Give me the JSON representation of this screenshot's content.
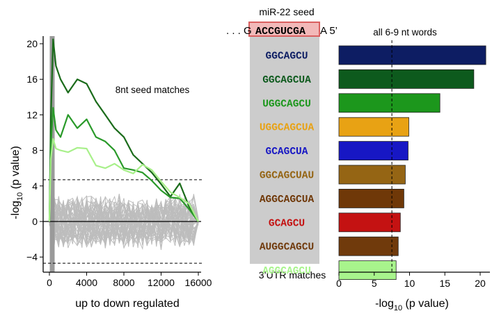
{
  "chart_data": [
    {
      "type": "line",
      "xlabel": "up to down regulated",
      "ylabel_main": "-log",
      "ylabel_sub": "10",
      "ylabel_rest": " (p value)",
      "annotation": "8nt seed matches",
      "xlim": [
        0,
        16000
      ],
      "ylim": [
        -5.5,
        21
      ],
      "xticks": [
        0,
        4000,
        8000,
        12000,
        16000
      ],
      "yticks": [
        20,
        16,
        12,
        8,
        4,
        0,
        -4
      ],
      "ytick_labels": [
        "20",
        "16",
        "12",
        "8",
        "4",
        "0",
        "−4"
      ],
      "threshold_lines": [
        4.7,
        -4.7
      ],
      "highlight_bar_x": 300,
      "colors": {
        "dark_green": "#1a6b1a",
        "mid_green": "#2a9a2a",
        "light_green": "#a8f08a",
        "background_lines": "#bdbdbd"
      },
      "series": [
        {
          "color": "#1a6b1a",
          "x": [
            0,
            150,
            400,
            700,
            1200,
            2000,
            3000,
            4000,
            5000,
            6000,
            7000,
            8000,
            9000,
            10000,
            11000,
            12000,
            13000,
            14000,
            15000,
            16000
          ],
          "y": [
            0,
            11.5,
            20.5,
            17.5,
            16,
            14.5,
            16,
            15.5,
            13.5,
            12,
            10.5,
            9.5,
            7.5,
            6.5,
            5.5,
            4.2,
            2.8,
            4.3,
            1.7,
            0
          ]
        },
        {
          "color": "#2a9a2a",
          "x": [
            0,
            150,
            400,
            700,
            1200,
            2000,
            3000,
            4000,
            5000,
            6000,
            7000,
            8000,
            9000,
            10000,
            11000,
            12000,
            13000,
            14000,
            15000,
            16000
          ],
          "y": [
            0,
            8.5,
            12.8,
            10.3,
            9.5,
            12,
            10.5,
            11.5,
            9.5,
            9,
            8,
            6,
            5.8,
            5.5,
            4.6,
            3.5,
            2.7,
            2.6,
            1.4,
            0
          ]
        },
        {
          "color": "#a8f08a",
          "x": [
            0,
            150,
            400,
            700,
            1200,
            2000,
            3000,
            4000,
            5000,
            6000,
            7000,
            8000,
            9000,
            10000,
            11000,
            12000,
            13000,
            14000,
            15000,
            16000
          ],
          "y": [
            0,
            7,
            9.3,
            8.2,
            8,
            7.8,
            8.3,
            8.2,
            6.3,
            6,
            6.5,
            5.8,
            5.4,
            6.4,
            5.8,
            4.5,
            3.3,
            2.7,
            2,
            0
          ]
        }
      ],
      "background_series": {
        "count": 45,
        "x": [
          0,
          500,
          1000,
          1500,
          2000,
          2500,
          3000,
          3500,
          4000,
          4500,
          5000,
          5500,
          6000,
          6500,
          7000,
          7500,
          8000,
          8500,
          9000,
          9500,
          10000,
          10500,
          11000,
          11500,
          12000,
          12500,
          13000,
          13500,
          14000,
          14500,
          15000,
          15500,
          16000
        ],
        "y_range": [
          -3,
          3.5
        ]
      }
    },
    {
      "type": "bar",
      "orientation": "horizontal",
      "title": "all 6-9 nt words",
      "xlabel_main": "-log",
      "xlabel_sub": "10",
      "xlabel_rest": " (p value)",
      "xlim": [
        0,
        21
      ],
      "xticks": [
        0,
        5,
        10,
        15,
        20
      ],
      "threshold": 7.5,
      "categories": [
        "GGCAGCU",
        "GGCAGCUA",
        "UGGCAGCU",
        "UGGCAGCUA",
        "GCAGCUA",
        "GGCAGCUAU",
        "AGGCAGCUA",
        "GCAGCU",
        "AUGGCAGCU",
        "AGGCAGCU"
      ],
      "values": [
        20.8,
        19.1,
        14.3,
        9.9,
        9.8,
        9.4,
        9.2,
        8.7,
        8.4,
        8.1
      ],
      "colors": [
        "#0d1d63",
        "#0d5a1d",
        "#1c971c",
        "#e8a214",
        "#1717c4",
        "#956514",
        "#6f3808",
        "#c41212",
        "#703a0c",
        "#a8f48c"
      ]
    }
  ],
  "seed_header": {
    "title": "miR-22 seed",
    "prefix": ". . . G",
    "seed": "ACCGUCGA",
    "suffix": "A 5’",
    "footer": "3’UTR matches"
  }
}
